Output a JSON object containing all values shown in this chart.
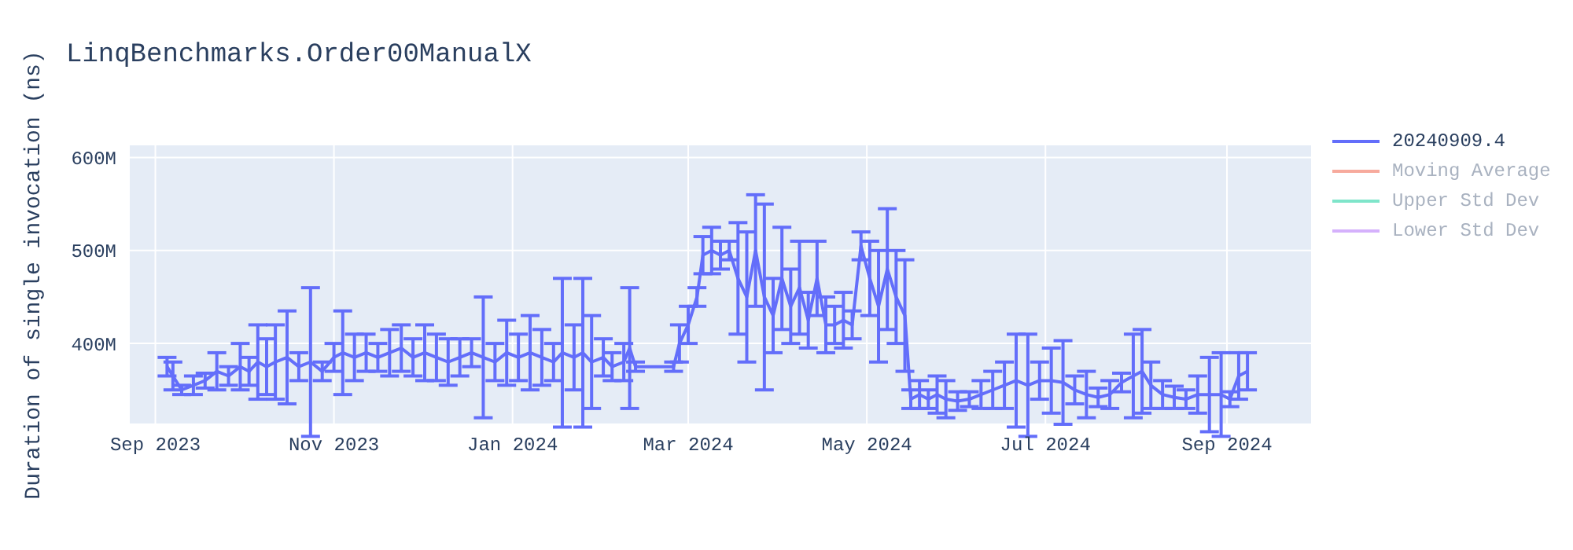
{
  "chart_data": {
    "type": "line",
    "title": "LinqBenchmarks.Order00ManualX",
    "ylabel": "Duration of single invocation (ns)",
    "x": [
      "2023-09-05",
      "2023-09-07",
      "2023-09-10",
      "2023-09-14",
      "2023-09-18",
      "2023-09-22",
      "2023-09-26",
      "2023-09-30",
      "2023-10-03",
      "2023-10-06",
      "2023-10-09",
      "2023-10-12",
      "2023-10-16",
      "2023-10-20",
      "2023-10-24",
      "2023-10-28",
      "2023-11-01",
      "2023-11-04",
      "2023-11-08",
      "2023-11-12",
      "2023-11-16",
      "2023-11-20",
      "2023-11-24",
      "2023-11-28",
      "2023-12-02",
      "2023-12-06",
      "2023-12-10",
      "2023-12-14",
      "2023-12-18",
      "2023-12-22",
      "2023-12-26",
      "2023-12-30",
      "2024-01-03",
      "2024-01-07",
      "2024-01-11",
      "2024-01-15",
      "2024-01-18",
      "2024-01-22",
      "2024-01-25",
      "2024-01-28",
      "2024-02-01",
      "2024-02-04",
      "2024-02-08",
      "2024-02-10",
      "2024-02-12",
      "2024-02-25",
      "2024-02-27",
      "2024-03-01",
      "2024-03-04",
      "2024-03-06",
      "2024-03-09",
      "2024-03-12",
      "2024-03-15",
      "2024-03-18",
      "2024-03-21",
      "2024-03-24",
      "2024-03-27",
      "2024-03-30",
      "2024-04-02",
      "2024-04-05",
      "2024-04-08",
      "2024-04-11",
      "2024-04-14",
      "2024-04-17",
      "2024-04-20",
      "2024-04-23",
      "2024-04-26",
      "2024-04-29",
      "2024-05-02",
      "2024-05-05",
      "2024-05-08",
      "2024-05-11",
      "2024-05-14",
      "2024-05-16",
      "2024-05-19",
      "2024-05-22",
      "2024-05-25",
      "2024-05-28",
      "2024-06-01",
      "2024-06-05",
      "2024-06-09",
      "2024-06-13",
      "2024-06-17",
      "2024-06-21",
      "2024-06-25",
      "2024-06-29",
      "2024-07-03",
      "2024-07-07",
      "2024-07-11",
      "2024-07-15",
      "2024-07-19",
      "2024-07-23",
      "2024-07-27",
      "2024-07-31",
      "2024-08-03",
      "2024-08-06",
      "2024-08-10",
      "2024-08-14",
      "2024-08-18",
      "2024-08-22",
      "2024-08-26",
      "2024-08-30",
      "2024-09-02",
      "2024-09-05",
      "2024-09-08"
    ],
    "series": [
      {
        "name": "20240909.4",
        "color": "#636efa",
        "values": [
          375000000,
          365000000,
          350000000,
          355000000,
          360000000,
          370000000,
          365000000,
          375000000,
          370000000,
          380000000,
          375000000,
          380000000,
          385000000,
          375000000,
          380000000,
          370000000,
          385000000,
          390000000,
          385000000,
          390000000,
          385000000,
          390000000,
          395000000,
          385000000,
          390000000,
          385000000,
          380000000,
          385000000,
          390000000,
          385000000,
          380000000,
          390000000,
          385000000,
          390000000,
          385000000,
          380000000,
          390000000,
          385000000,
          390000000,
          380000000,
          385000000,
          375000000,
          380000000,
          395000000,
          375000000,
          375000000,
          400000000,
          420000000,
          450000000,
          495000000,
          500000000,
          495000000,
          500000000,
          470000000,
          450000000,
          500000000,
          450000000,
          430000000,
          470000000,
          440000000,
          460000000,
          425000000,
          470000000,
          420000000,
          420000000,
          425000000,
          420000000,
          505000000,
          470000000,
          440000000,
          480000000,
          450000000,
          430000000,
          340000000,
          345000000,
          340000000,
          345000000,
          340000000,
          338000000,
          340000000,
          345000000,
          350000000,
          355000000,
          360000000,
          355000000,
          360000000,
          360000000,
          358000000,
          350000000,
          345000000,
          342000000,
          345000000,
          358000000,
          365000000,
          370000000,
          355000000,
          345000000,
          342000000,
          340000000,
          345000000,
          345000000,
          345000000,
          340000000,
          365000000,
          370000000
        ],
        "errors": [
          10000000,
          15000000,
          5000000,
          10000000,
          8000000,
          20000000,
          10000000,
          25000000,
          15000000,
          40000000,
          30000000,
          40000000,
          50000000,
          15000000,
          80000000,
          10000000,
          15000000,
          45000000,
          25000000,
          20000000,
          15000000,
          25000000,
          25000000,
          20000000,
          30000000,
          25000000,
          25000000,
          20000000,
          15000000,
          65000000,
          20000000,
          35000000,
          25000000,
          40000000,
          30000000,
          20000000,
          80000000,
          35000000,
          80000000,
          50000000,
          20000000,
          15000000,
          20000000,
          65000000,
          5000000,
          5000000,
          20000000,
          20000000,
          10000000,
          20000000,
          25000000,
          15000000,
          10000000,
          60000000,
          70000000,
          60000000,
          100000000,
          40000000,
          55000000,
          40000000,
          50000000,
          30000000,
          40000000,
          30000000,
          20000000,
          30000000,
          15000000,
          15000000,
          40000000,
          60000000,
          65000000,
          50000000,
          60000000,
          10000000,
          15000000,
          10000000,
          20000000,
          20000000,
          10000000,
          8000000,
          15000000,
          20000000,
          25000000,
          50000000,
          55000000,
          20000000,
          35000000,
          45000000,
          15000000,
          25000000,
          10000000,
          15000000,
          10000000,
          45000000,
          45000000,
          25000000,
          15000000,
          12000000,
          10000000,
          20000000,
          40000000,
          45000000,
          8000000,
          25000000,
          20000000
        ]
      },
      {
        "name": "Moving Average",
        "color": "#f7aa9d",
        "values": [
          null,
          null,
          null,
          null,
          null,
          null,
          null,
          null,
          null,
          null,
          null,
          null,
          null,
          null,
          null,
          null,
          null,
          null,
          null,
          null,
          null,
          null,
          null,
          null,
          null,
          null,
          null,
          null,
          null,
          null,
          null,
          null,
          null,
          null,
          null,
          null,
          null,
          null,
          null,
          null,
          null,
          null,
          null,
          null,
          null,
          null,
          null,
          null,
          null,
          null,
          null,
          null,
          null,
          null,
          null,
          null,
          null,
          null,
          null,
          null,
          null,
          null,
          null,
          null,
          null,
          null,
          null,
          null,
          null,
          null,
          null,
          null,
          null,
          null,
          null,
          null,
          null,
          null,
          null,
          null,
          null,
          null,
          null,
          null,
          null,
          null,
          null,
          null,
          null,
          null,
          null,
          null,
          null,
          null,
          null,
          null,
          null,
          null,
          null,
          null,
          null,
          null,
          null,
          null,
          null
        ]
      },
      {
        "name": "Upper Std Dev",
        "color": "#7fe5ca",
        "values": [
          null,
          null,
          null,
          null,
          null,
          null,
          null,
          null,
          null,
          null,
          null,
          null,
          null,
          null,
          null,
          null,
          null,
          null,
          null,
          null,
          null,
          null,
          null,
          null,
          null,
          null,
          null,
          null,
          null,
          null,
          null,
          null,
          null,
          null,
          null,
          null,
          null,
          null,
          null,
          null,
          null,
          null,
          null,
          null,
          null,
          null,
          null,
          null,
          null,
          null,
          null,
          null,
          null,
          null,
          null,
          null,
          null,
          null,
          null,
          null,
          null,
          null,
          null,
          null,
          null,
          null,
          null,
          null,
          null,
          null,
          null,
          null,
          null,
          null,
          null,
          null,
          null,
          null,
          null,
          null,
          null,
          null,
          null,
          null,
          null,
          null,
          null,
          null,
          null,
          null,
          null,
          null,
          null,
          null,
          null,
          null,
          null,
          null,
          null,
          null,
          null,
          null,
          null,
          null,
          null
        ]
      },
      {
        "name": "Lower Std Dev",
        "color": "#d5b1fc",
        "values": [
          null,
          null,
          null,
          null,
          null,
          null,
          null,
          null,
          null,
          null,
          null,
          null,
          null,
          null,
          null,
          null,
          null,
          null,
          null,
          null,
          null,
          null,
          null,
          null,
          null,
          null,
          null,
          null,
          null,
          null,
          null,
          null,
          null,
          null,
          null,
          null,
          null,
          null,
          null,
          null,
          null,
          null,
          null,
          null,
          null,
          null,
          null,
          null,
          null,
          null,
          null,
          null,
          null,
          null,
          null,
          null,
          null,
          null,
          null,
          null,
          null,
          null,
          null,
          null,
          null,
          null,
          null,
          null,
          null,
          null,
          null,
          null,
          null,
          null,
          null,
          null,
          null,
          null,
          null,
          null,
          null,
          null,
          null,
          null,
          null,
          null,
          null,
          null,
          null,
          null,
          null,
          null,
          null,
          null,
          null,
          null,
          null,
          null,
          null,
          null,
          null,
          null,
          null,
          null,
          null
        ]
      }
    ],
    "xlim": [
      "2023-08-23",
      "2024-09-30"
    ],
    "xticks": [
      {
        "value": "2023-09-01",
        "label": "Sep 2023"
      },
      {
        "value": "2023-11-01",
        "label": "Nov 2023"
      },
      {
        "value": "2024-01-01",
        "label": "Jan 2024"
      },
      {
        "value": "2024-03-01",
        "label": "Mar 2024"
      },
      {
        "value": "2024-05-01",
        "label": "May 2024"
      },
      {
        "value": "2024-07-01",
        "label": "Jul 2024"
      },
      {
        "value": "2024-09-01",
        "label": "Sep 2024"
      }
    ],
    "ylim": [
      313000000,
      614000000
    ],
    "yticks": [
      {
        "value": 400000000,
        "label": "400M"
      },
      {
        "value": 500000000,
        "label": "500M"
      },
      {
        "value": 600000000,
        "label": "600M"
      }
    ],
    "grid": true,
    "legend": "top right",
    "marker": "none",
    "line_style": "solid"
  }
}
